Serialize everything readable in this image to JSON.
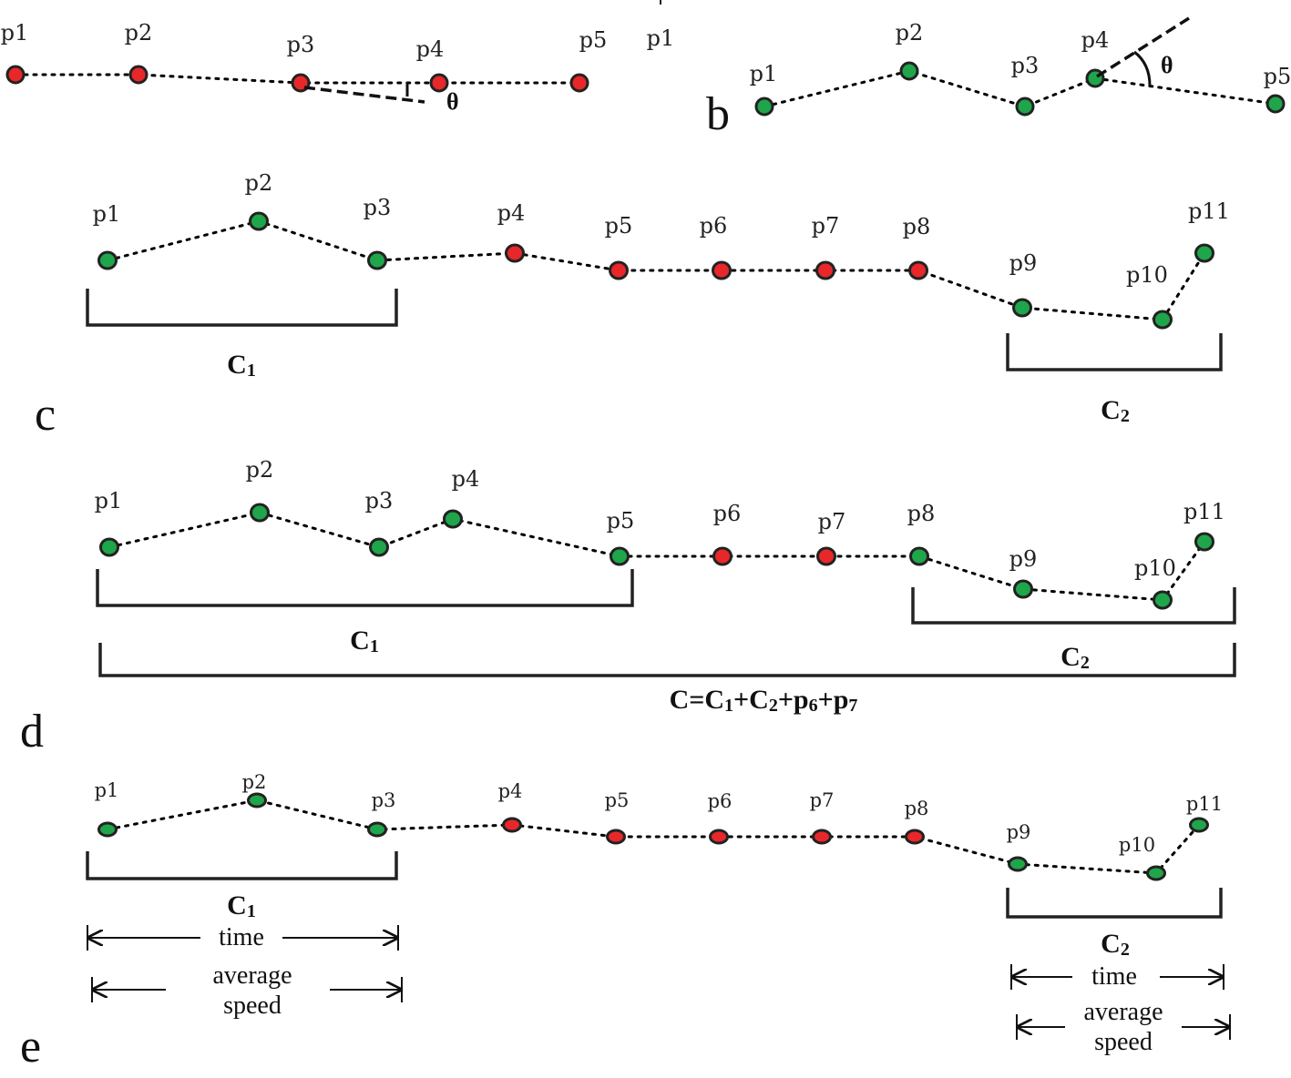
{
  "colors": {
    "noise": "#e8272a",
    "cluster": "#1fa54a"
  },
  "panel_a": {
    "points": [
      {
        "label": "p1",
        "type": "noise"
      },
      {
        "label": "p2",
        "type": "noise"
      },
      {
        "label": "p3",
        "type": "noise"
      },
      {
        "label": "p4",
        "type": "noise"
      },
      {
        "label": "p5",
        "type": "noise"
      }
    ],
    "theta": "θ",
    "stray_label": "p1"
  },
  "panel_b": {
    "letter": "b",
    "points": [
      {
        "label": "p1",
        "type": "cluster"
      },
      {
        "label": "p2",
        "type": "cluster"
      },
      {
        "label": "p3",
        "type": "cluster"
      },
      {
        "label": "p4",
        "type": "cluster"
      },
      {
        "label": "p5",
        "type": "cluster"
      }
    ],
    "theta": "θ"
  },
  "panel_c": {
    "letter": "c",
    "points": [
      {
        "label": "p1",
        "type": "cluster"
      },
      {
        "label": "p2",
        "type": "cluster"
      },
      {
        "label": "p3",
        "type": "cluster"
      },
      {
        "label": "p4",
        "type": "noise"
      },
      {
        "label": "p5",
        "type": "noise"
      },
      {
        "label": "p6",
        "type": "noise"
      },
      {
        "label": "p7",
        "type": "noise"
      },
      {
        "label": "p8",
        "type": "noise"
      },
      {
        "label": "p9",
        "type": "cluster"
      },
      {
        "label": "p10",
        "type": "cluster"
      },
      {
        "label": "p11",
        "type": "cluster"
      }
    ],
    "clusters": [
      {
        "base": "C",
        "sub": "1"
      },
      {
        "base": "C",
        "sub": "2"
      }
    ]
  },
  "panel_d": {
    "letter": "d",
    "points": [
      {
        "label": "p1",
        "type": "cluster"
      },
      {
        "label": "p2",
        "type": "cluster"
      },
      {
        "label": "p3",
        "type": "cluster"
      },
      {
        "label": "p4",
        "type": "cluster"
      },
      {
        "label": "p5",
        "type": "cluster"
      },
      {
        "label": "p6",
        "type": "noise"
      },
      {
        "label": "p7",
        "type": "noise"
      },
      {
        "label": "p8",
        "type": "cluster"
      },
      {
        "label": "p9",
        "type": "cluster"
      },
      {
        "label": "p10",
        "type": "cluster"
      },
      {
        "label": "p11",
        "type": "cluster"
      }
    ],
    "clusters": [
      {
        "base": "C",
        "sub": "1"
      },
      {
        "base": "C",
        "sub": "2"
      }
    ],
    "merged": [
      {
        "t": "C=C",
        "s": false
      },
      {
        "t": "1",
        "s": true
      },
      {
        "t": "+C",
        "s": false
      },
      {
        "t": "2",
        "s": true
      },
      {
        "t": "+p",
        "s": false
      },
      {
        "t": "6",
        "s": true
      },
      {
        "t": "+p",
        "s": false
      },
      {
        "t": "7",
        "s": true
      }
    ]
  },
  "panel_e": {
    "letter": "e",
    "points": [
      {
        "label": "p1",
        "type": "cluster"
      },
      {
        "label": "p2",
        "type": "cluster"
      },
      {
        "label": "p3",
        "type": "cluster"
      },
      {
        "label": "p4",
        "type": "noise"
      },
      {
        "label": "p5",
        "type": "noise"
      },
      {
        "label": "p6",
        "type": "noise"
      },
      {
        "label": "p7",
        "type": "noise"
      },
      {
        "label": "p8",
        "type": "noise"
      },
      {
        "label": "p9",
        "type": "cluster"
      },
      {
        "label": "p10",
        "type": "cluster"
      },
      {
        "label": "p11",
        "type": "cluster"
      }
    ],
    "clusters": [
      {
        "base": "C",
        "sub": "1"
      },
      {
        "base": "C",
        "sub": "2"
      }
    ],
    "time_label": "time",
    "speed_label_1": "average",
    "speed_label_2": "speed"
  }
}
